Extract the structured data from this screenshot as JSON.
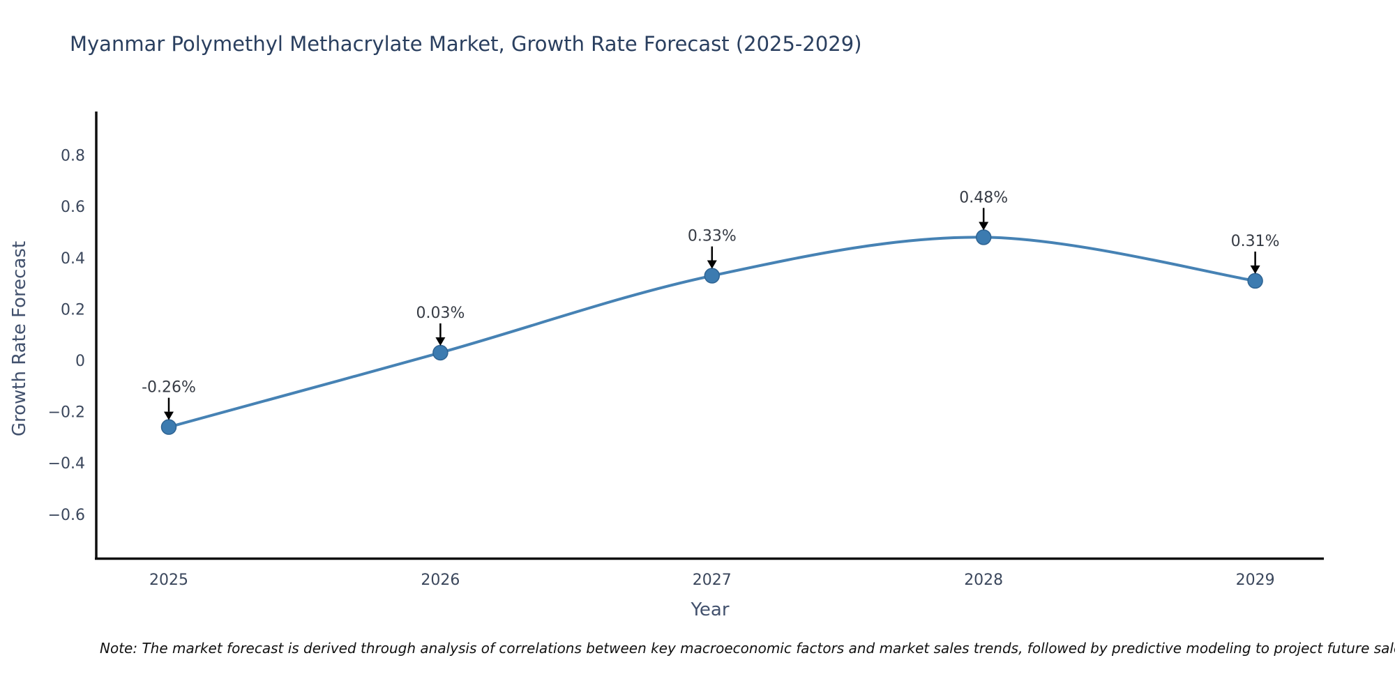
{
  "title": "Myanmar Polymethyl Methacrylate Market, Growth Rate Forecast (2025-2029)",
  "note": "Note: The market forecast is derived through analysis of correlations between key macroeconomic factors and market sales trends, followed by predictive modeling to project future sales performance.",
  "colors": {
    "background": "#ffffff",
    "title_text": "#2a3f5f",
    "axis_title_text": "#42516d",
    "tick_text": "#3b475c",
    "annotation_text": "#363b44",
    "axis_line": "#0f0f0f",
    "note_text": "#111111"
  },
  "chart_data": {
    "type": "line",
    "title": "Myanmar Polymethyl Methacrylate Market, Growth Rate Forecast (2025-2029)",
    "xlabel": "Year",
    "ylabel": "Growth Rate Forecast",
    "x": [
      2025,
      2026,
      2027,
      2028,
      2029
    ],
    "values": [
      -0.26,
      0.03,
      0.33,
      0.48,
      0.31
    ],
    "point_labels": [
      "-0.26%",
      "0.03%",
      "0.33%",
      "0.48%",
      "0.31%"
    ],
    "xticks": [
      "2025",
      "2026",
      "2027",
      "2028",
      "2029"
    ],
    "yticks": [
      0.8,
      0.6,
      0.4,
      0.2,
      0,
      -0.2,
      -0.4,
      -0.6
    ],
    "ytick_labels": [
      "0.8",
      "0.6",
      "0.4",
      "0.2",
      "0",
      "−0.2",
      "−0.4",
      "−0.6"
    ],
    "ylim": [
      -0.8,
      1.0
    ],
    "grid": false,
    "legend": "none",
    "line_shape": "spline",
    "line_color": "#4682b4",
    "marker_color": "#3c7bb0",
    "marker_edge_color": "#2e6392",
    "annotation_arrow_color": "#000000"
  }
}
